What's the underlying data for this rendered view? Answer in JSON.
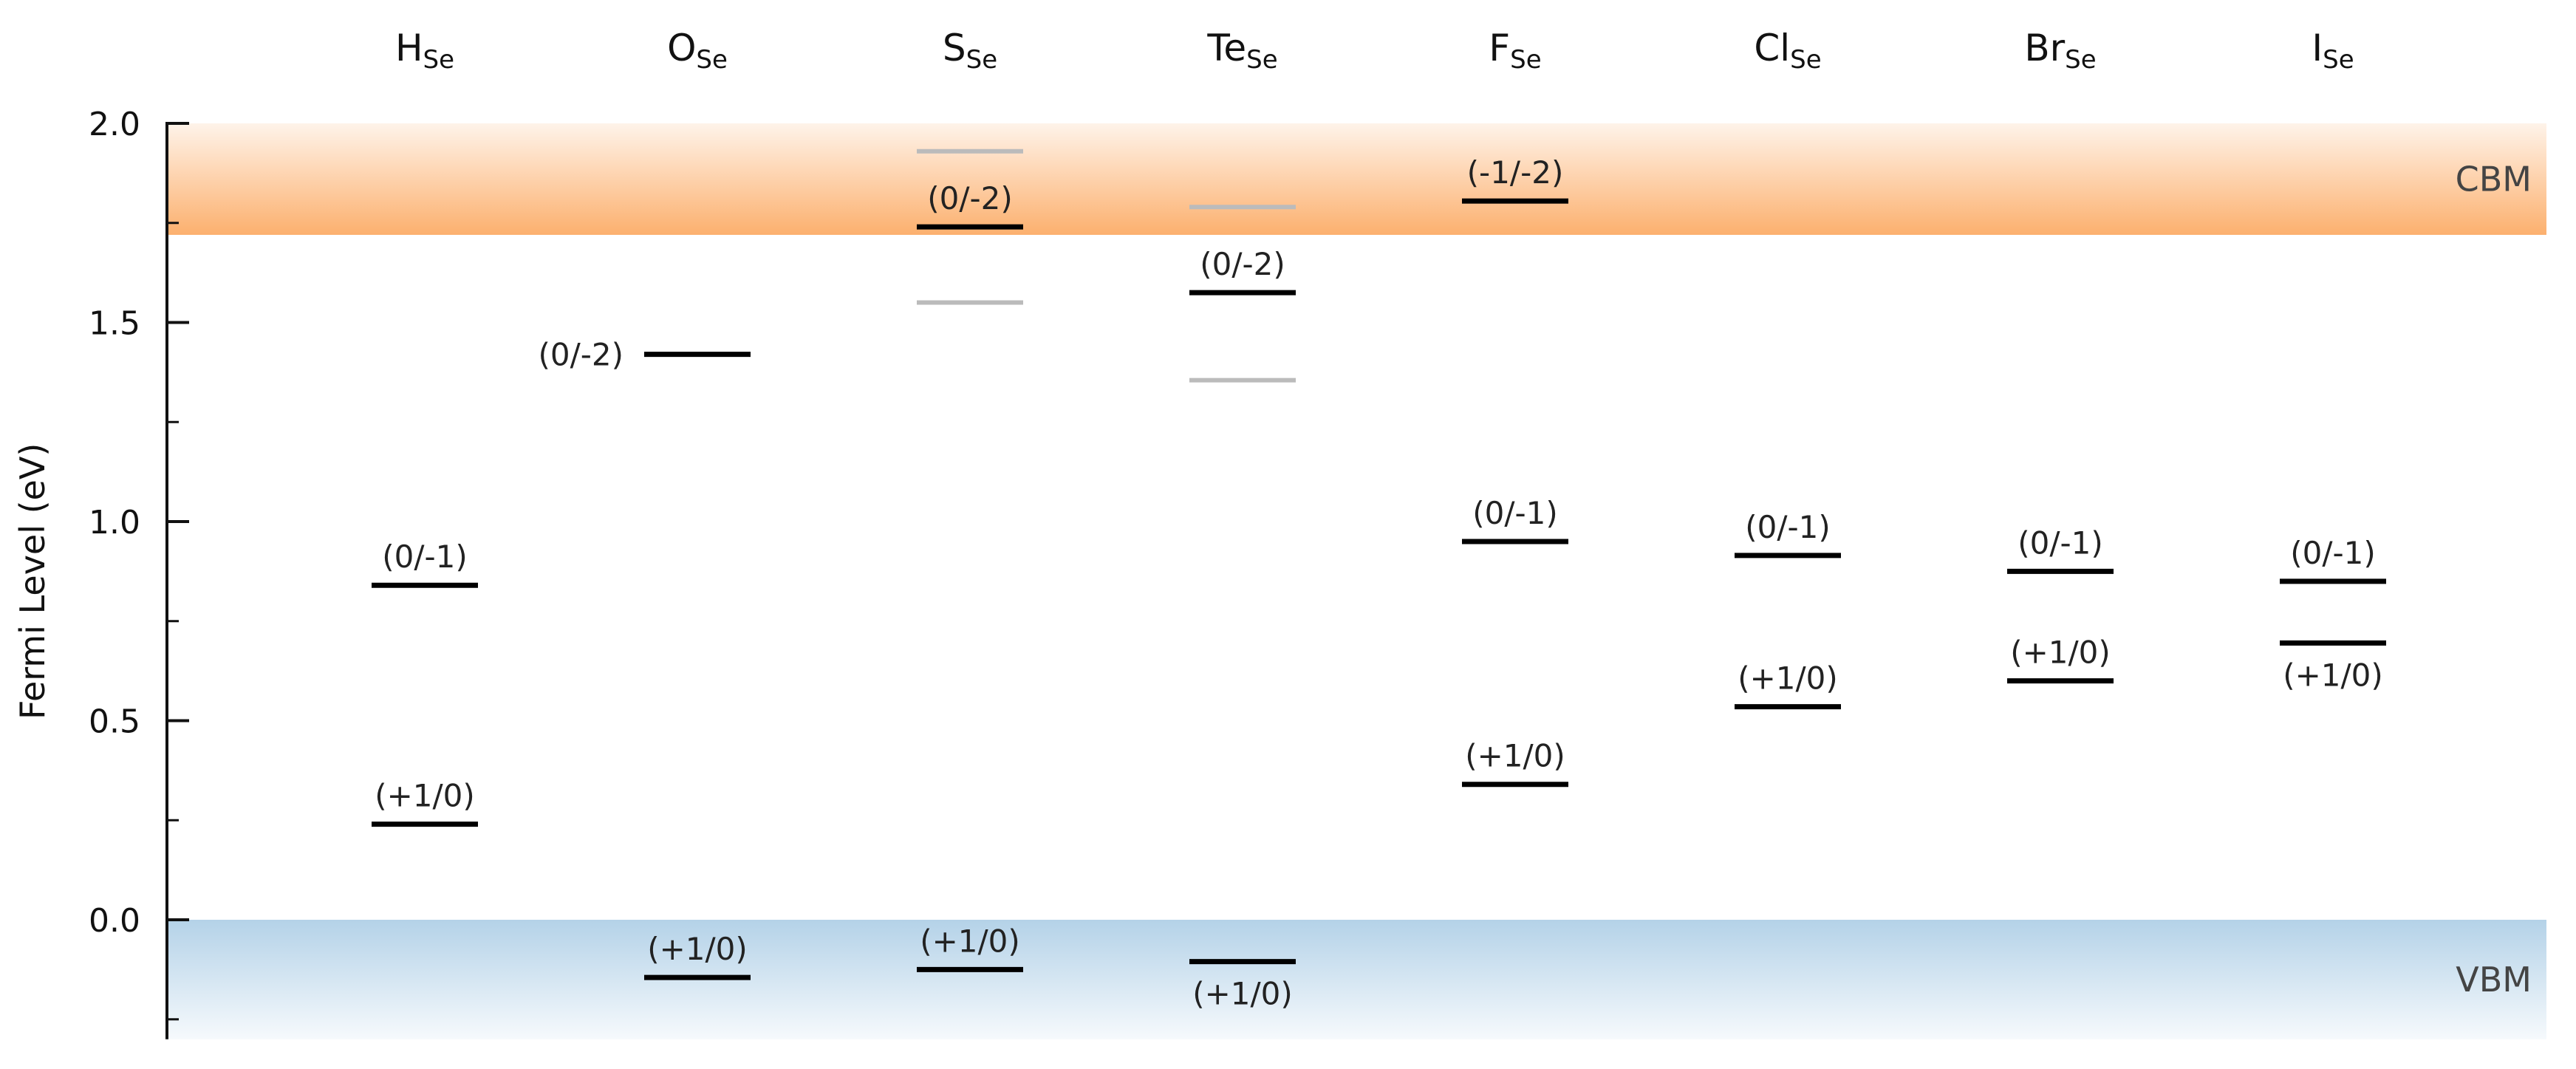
{
  "chart_data": {
    "type": "scatter",
    "ylabel": "Fermi Level (eV)",
    "ylim": [
      -0.3,
      2.0
    ],
    "yticks": [
      0.0,
      0.5,
      1.0,
      1.5,
      2.0
    ],
    "ytick_labels": [
      "0.0",
      "0.5",
      "1.0",
      "1.5",
      "2.0"
    ],
    "bands": {
      "cbm": {
        "label": "CBM",
        "from": 1.72,
        "to": 2.0,
        "color": "#fcb06e"
      },
      "vbm": {
        "label": "VBM",
        "from": -0.3,
        "to": 0.0,
        "color": "#b4d2e8"
      }
    },
    "defects": [
      {
        "name": "H",
        "sub": "Se",
        "levels": [
          {
            "label": "(0/-1)",
            "value": 0.84,
            "label_pos": "above",
            "style": "primary"
          },
          {
            "label": "(+1/0)",
            "value": 0.24,
            "label_pos": "above",
            "style": "primary"
          }
        ]
      },
      {
        "name": "O",
        "sub": "Se",
        "levels": [
          {
            "label": "(0/-2)",
            "value": 1.42,
            "label_pos": "left",
            "style": "primary"
          },
          {
            "label": "(+1/0)",
            "value": -0.145,
            "label_pos": "above",
            "style": "primary"
          }
        ]
      },
      {
        "name": "S",
        "sub": "Se",
        "levels": [
          {
            "label": "",
            "value": 1.93,
            "label_pos": "none",
            "style": "secondary"
          },
          {
            "label": "(0/-2)",
            "value": 1.74,
            "label_pos": "above",
            "style": "primary"
          },
          {
            "label": "",
            "value": 1.55,
            "label_pos": "none",
            "style": "secondary"
          },
          {
            "label": "(+1/0)",
            "value": -0.125,
            "label_pos": "above",
            "style": "primary"
          }
        ]
      },
      {
        "name": "Te",
        "sub": "Se",
        "levels": [
          {
            "label": "",
            "value": 1.79,
            "label_pos": "none",
            "style": "secondary"
          },
          {
            "label": "(0/-2)",
            "value": 1.575,
            "label_pos": "above",
            "style": "primary"
          },
          {
            "label": "",
            "value": 1.355,
            "label_pos": "none",
            "style": "secondary"
          },
          {
            "label": "(+1/0)",
            "value": -0.105,
            "label_pos": "below",
            "style": "primary"
          }
        ]
      },
      {
        "name": "F",
        "sub": "Se",
        "levels": [
          {
            "label": "(-1/-2)",
            "value": 1.805,
            "label_pos": "above",
            "style": "primary"
          },
          {
            "label": "(0/-1)",
            "value": 0.95,
            "label_pos": "above",
            "style": "primary"
          },
          {
            "label": "(+1/0)",
            "value": 0.34,
            "label_pos": "above",
            "style": "primary"
          }
        ]
      },
      {
        "name": "Cl",
        "sub": "Se",
        "levels": [
          {
            "label": "(0/-1)",
            "value": 0.915,
            "label_pos": "above",
            "style": "primary"
          },
          {
            "label": "(+1/0)",
            "value": 0.535,
            "label_pos": "above",
            "style": "primary"
          }
        ]
      },
      {
        "name": "Br",
        "sub": "Se",
        "levels": [
          {
            "label": "(0/-1)",
            "value": 0.875,
            "label_pos": "above",
            "style": "primary"
          },
          {
            "label": "(+1/0)",
            "value": 0.6,
            "label_pos": "above",
            "style": "primary"
          }
        ]
      },
      {
        "name": "I",
        "sub": "Se",
        "levels": [
          {
            "label": "(0/-1)",
            "value": 0.85,
            "label_pos": "above",
            "style": "primary"
          },
          {
            "label": "(+1/0)",
            "value": 0.695,
            "label_pos": "below",
            "style": "primary"
          }
        ]
      }
    ]
  }
}
